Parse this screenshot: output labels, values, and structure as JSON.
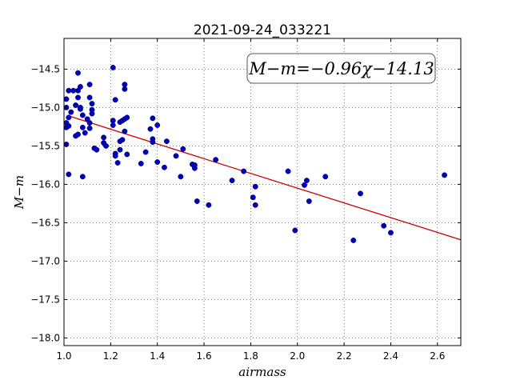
{
  "chart_data": {
    "type": "scatter",
    "title": "2021-09-24_033221",
    "xlabel": "airmass",
    "ylabel": "M−m",
    "annotation": "M−m=−0.96χ−14.13",
    "xlim": [
      1.0,
      2.7
    ],
    "ylim": [
      -18.1,
      -14.1
    ],
    "xticks": [
      1.0,
      1.2,
      1.4,
      1.6,
      1.8,
      2.0,
      2.2,
      2.4,
      2.6
    ],
    "yticks": [
      -14.5,
      -15.0,
      -15.5,
      -16.0,
      -16.5,
      -17.0,
      -17.5,
      -18.0
    ],
    "yticks_labels": [
      "−14.5",
      "−15.0",
      "−15.5",
      "−16.0",
      "−16.5",
      "−17.0",
      "−17.5",
      "−18.0"
    ],
    "grid": true,
    "fit_line": {
      "slope": -0.96,
      "intercept": -14.13,
      "x": [
        1.02,
        2.7
      ],
      "color": "#cc0000"
    },
    "point_color": "#0000bb",
    "points": [
      [
        1.01,
        -14.89
      ],
      [
        1.01,
        -15.0
      ],
      [
        1.01,
        -15.2
      ],
      [
        1.01,
        -15.26
      ],
      [
        1.01,
        -15.48
      ],
      [
        1.02,
        -15.13
      ],
      [
        1.02,
        -15.24
      ],
      [
        1.02,
        -15.87
      ],
      [
        1.02,
        -14.78
      ],
      [
        1.03,
        -15.06
      ],
      [
        1.04,
        -14.78
      ],
      [
        1.05,
        -15.37
      ],
      [
        1.05,
        -14.97
      ],
      [
        1.06,
        -14.55
      ],
      [
        1.06,
        -14.78
      ],
      [
        1.06,
        -14.87
      ],
      [
        1.06,
        -15.35
      ],
      [
        1.07,
        -15.0
      ],
      [
        1.07,
        -15.02
      ],
      [
        1.07,
        -14.73
      ],
      [
        1.08,
        -15.1
      ],
      [
        1.08,
        -15.26
      ],
      [
        1.08,
        -15.9
      ],
      [
        1.09,
        -15.33
      ],
      [
        1.1,
        -15.15
      ],
      [
        1.11,
        -14.7
      ],
      [
        1.11,
        -14.87
      ],
      [
        1.11,
        -15.2
      ],
      [
        1.11,
        -15.27
      ],
      [
        1.12,
        -15.08
      ],
      [
        1.12,
        -15.03
      ],
      [
        1.12,
        -14.95
      ],
      [
        1.13,
        -15.53
      ],
      [
        1.14,
        -15.55
      ],
      [
        1.17,
        -15.39
      ],
      [
        1.17,
        -15.46
      ],
      [
        1.18,
        -15.5
      ],
      [
        1.21,
        -14.48
      ],
      [
        1.21,
        -15.17
      ],
      [
        1.21,
        -15.23
      ],
      [
        1.22,
        -14.9
      ],
      [
        1.22,
        -15.6
      ],
      [
        1.22,
        -15.63
      ],
      [
        1.23,
        -15.72
      ],
      [
        1.24,
        -15.44
      ],
      [
        1.24,
        -15.55
      ],
      [
        1.24,
        -15.19
      ],
      [
        1.25,
        -15.42
      ],
      [
        1.25,
        -15.17
      ],
      [
        1.26,
        -14.7
      ],
      [
        1.26,
        -14.76
      ],
      [
        1.26,
        -15.15
      ],
      [
        1.26,
        -15.31
      ],
      [
        1.27,
        -15.13
      ],
      [
        1.27,
        -15.61
      ],
      [
        1.33,
        -15.73
      ],
      [
        1.35,
        -15.58
      ],
      [
        1.37,
        -15.28
      ],
      [
        1.38,
        -15.14
      ],
      [
        1.38,
        -15.41
      ],
      [
        1.38,
        -15.45
      ],
      [
        1.4,
        -15.71
      ],
      [
        1.4,
        -15.23
      ],
      [
        1.43,
        -15.78
      ],
      [
        1.44,
        -15.44
      ],
      [
        1.48,
        -15.63
      ],
      [
        1.5,
        -15.9
      ],
      [
        1.51,
        -15.54
      ],
      [
        1.55,
        -15.74
      ],
      [
        1.56,
        -15.75
      ],
      [
        1.56,
        -15.79
      ],
      [
        1.57,
        -16.22
      ],
      [
        1.62,
        -16.27
      ],
      [
        1.65,
        -15.68
      ],
      [
        1.72,
        -15.95
      ],
      [
        1.77,
        -15.83
      ],
      [
        1.81,
        -16.17
      ],
      [
        1.82,
        -16.27
      ],
      [
        1.82,
        -16.03
      ],
      [
        1.96,
        -15.83
      ],
      [
        1.99,
        -16.6
      ],
      [
        2.03,
        -16.01
      ],
      [
        2.04,
        -15.95
      ],
      [
        2.05,
        -16.22
      ],
      [
        2.12,
        -15.9
      ],
      [
        2.24,
        -16.73
      ],
      [
        2.27,
        -16.12
      ],
      [
        2.37,
        -16.54
      ],
      [
        2.4,
        -16.63
      ],
      [
        2.63,
        -15.88
      ]
    ]
  }
}
